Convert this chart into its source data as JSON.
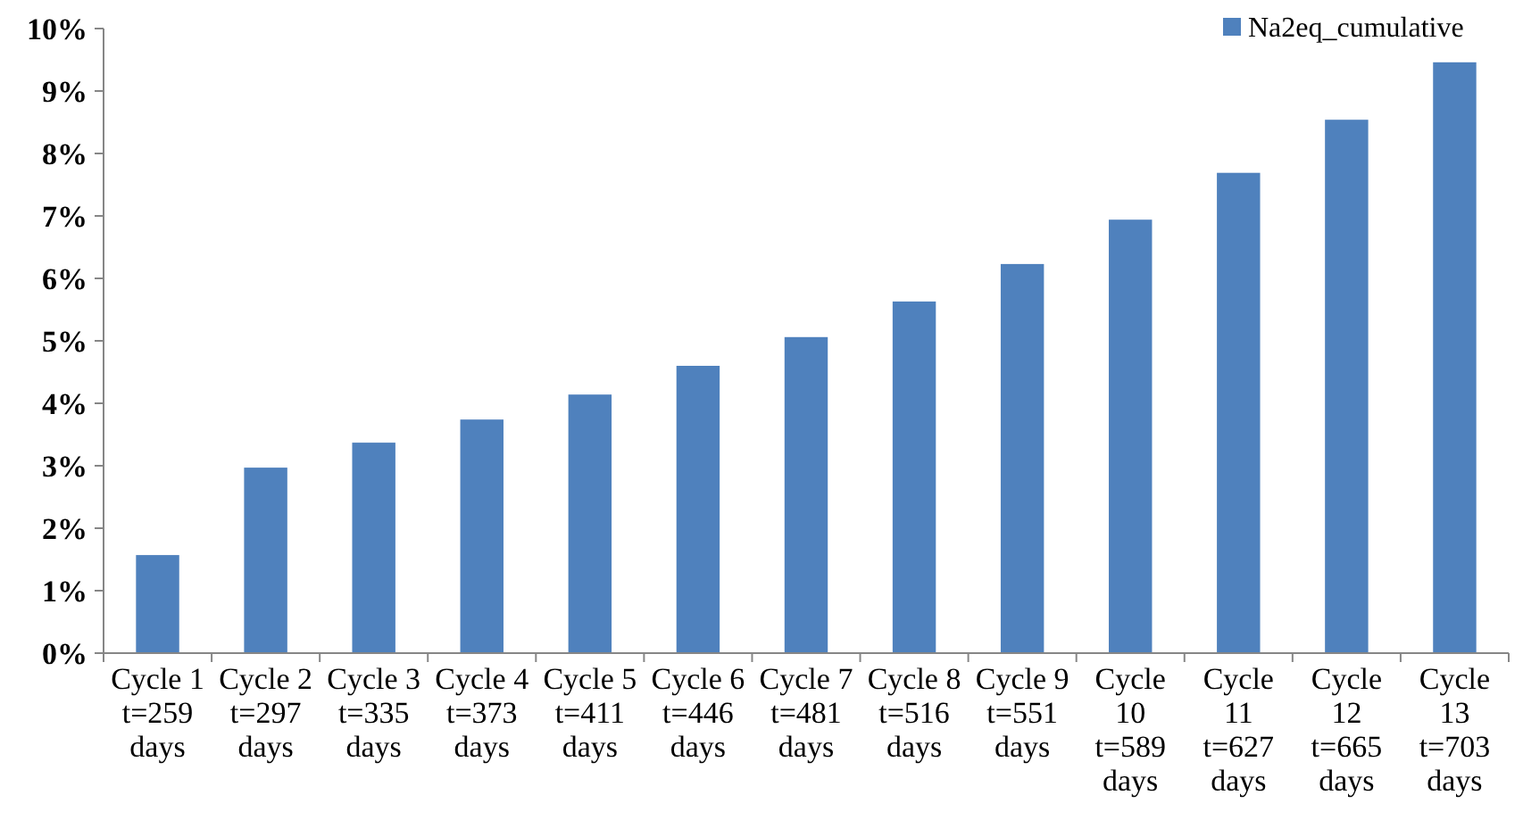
{
  "chart_data": {
    "type": "bar",
    "categories": [
      "Cycle 1\nt=259\ndays",
      "Cycle 2\nt=297\ndays",
      "Cycle 3\nt=335\ndays",
      "Cycle 4\nt=373\ndays",
      "Cycle 5\nt=411\ndays",
      "Cycle 6\nt=446\ndays",
      "Cycle 7\nt=481\ndays",
      "Cycle 8\nt=516\ndays",
      "Cycle 9\nt=551\ndays",
      "Cycle\n10\nt=589\ndays",
      "Cycle\n11\nt=627\ndays",
      "Cycle\n12\nt=665\ndays",
      "Cycle\n13\nt=703\ndays"
    ],
    "series": [
      {
        "name": "Na2eq_cumulative",
        "color": "#4f81bd",
        "values": [
          1.57,
          2.97,
          3.37,
          3.74,
          4.14,
          4.6,
          5.06,
          5.63,
          6.23,
          6.94,
          7.69,
          8.54,
          9.46
        ]
      }
    ],
    "ylim": [
      0,
      10
    ],
    "yticks": [
      {
        "value": 0,
        "label": "0%"
      },
      {
        "value": 1,
        "label": "1%"
      },
      {
        "value": 2,
        "label": "2%"
      },
      {
        "value": 3,
        "label": "3%"
      },
      {
        "value": 4,
        "label": "4%"
      },
      {
        "value": 5,
        "label": "5%"
      },
      {
        "value": 6,
        "label": "6%"
      },
      {
        "value": 7,
        "label": "7%"
      },
      {
        "value": 8,
        "label": "8%"
      },
      {
        "value": 9,
        "label": "9%"
      },
      {
        "value": 10,
        "label": "10%"
      }
    ],
    "grid": false,
    "legend": "top right"
  }
}
